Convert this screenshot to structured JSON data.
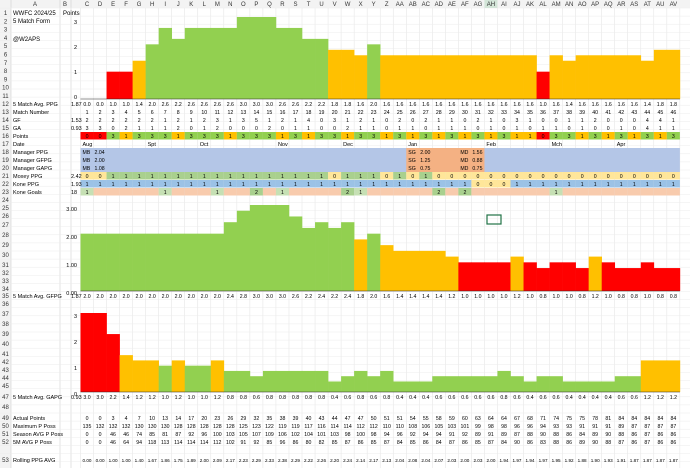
{
  "sheet": {
    "columns": [
      "A",
      "B",
      "C",
      "D",
      "E",
      "F",
      "G",
      "H",
      "I",
      "J",
      "K",
      "L",
      "M",
      "N",
      "O",
      "P",
      "Q",
      "R",
      "S",
      "T",
      "U",
      "V",
      "W",
      "X",
      "Y",
      "Z",
      "AA",
      "AB",
      "AC",
      "AD",
      "AE",
      "AF",
      "AG",
      "AH",
      "AI",
      "AJ",
      "AK",
      "AL",
      "AM",
      "AN",
      "AO",
      "AP",
      "AQ",
      "AR",
      "AS",
      "AT",
      "AU",
      "AV"
    ],
    "selected_column": "AH",
    "rows_top": [
      1,
      2,
      3,
      4,
      5,
      6,
      7,
      8,
      9,
      10,
      11
    ]
  },
  "labels": {
    "title": "WWFC 2024/25",
    "points_header": "Points",
    "form_label": "5 Match Form",
    "handle": "@W2APS",
    "row12": "5 Match Avg. PPG",
    "row12_val": "1.87",
    "row13": "Match Number",
    "row14": "GF",
    "row14_val": "1.53",
    "row15": "GA",
    "row15_val": "0.93",
    "row16": "Points",
    "row17": "Date",
    "row18": "Manager PPG",
    "row19": "Manager GFPG",
    "row20": "Manager GAPG",
    "row21": "Moxey PPG",
    "row21_val": "2.42",
    "row22": "Kone PPG",
    "row22_val": "1.93",
    "row23": "Kone Goals",
    "row23_val": "18",
    "row35": "5 Match Avg. GFPG",
    "row35_val": "1.87",
    "row47": "5 Match Avg. GAPG",
    "row47_val": "0.93",
    "row49": "Actual Points",
    "row50": "Maximum P Poss",
    "row51": "Season AVG P Poss",
    "row52": "5M AVG P Poss",
    "row53": "Rolling PPG AVG"
  },
  "axis_top": [
    "3",
    "2",
    "1",
    "0"
  ],
  "axis_mid": [
    "3.00",
    "2.00",
    "1.00",
    "0.00"
  ],
  "axis_bot": [
    "3",
    "2",
    "1",
    "0"
  ],
  "chart_data": [
    {
      "type": "bar",
      "title": "5 Match Form",
      "categories": [
        "1",
        "2",
        "3",
        "4",
        "5",
        "6",
        "7",
        "8",
        "9",
        "10",
        "11",
        "12",
        "13",
        "14",
        "15",
        "16",
        "17",
        "18",
        "19",
        "20",
        "21",
        "22",
        "23",
        "24",
        "25",
        "26",
        "27",
        "28",
        "29",
        "30",
        "31",
        "32",
        "33",
        "34",
        "35",
        "36",
        "37",
        "38",
        "39",
        "40",
        "41",
        "42",
        "43",
        "44",
        "45",
        "46"
      ],
      "values": [
        0,
        0,
        1,
        1,
        1.4,
        2,
        2.6,
        2.2,
        2.6,
        2.6,
        2.6,
        2.6,
        3,
        3,
        3,
        2.6,
        2.6,
        2.2,
        2.2,
        1.8,
        1.8,
        1.6,
        2,
        1.6,
        1.6,
        1.6,
        1.6,
        1.6,
        1.6,
        1.6,
        1.6,
        1.6,
        1.6,
        1.6,
        1.6,
        1,
        1.6,
        1.4,
        1.6,
        1.6,
        1.6,
        1.6,
        1.6,
        1.4,
        1.8,
        1.8
      ],
      "ylim": [
        0,
        3
      ],
      "colors": {
        "high": "#92d050",
        "mid": "#ffc000",
        "low": "#ff0000"
      }
    },
    {
      "type": "bar",
      "title": "5 Match Avg. GFPG",
      "values": [
        2,
        2,
        2,
        2,
        2,
        2,
        2,
        2,
        2,
        2,
        2,
        2.4,
        2.8,
        3,
        3,
        3,
        2.6,
        2.2,
        2.4,
        2.2,
        2.4,
        1.8,
        2,
        1.6,
        1.4,
        1.4,
        1.4,
        1.4,
        1.2,
        1,
        1,
        1,
        1,
        1.2,
        1,
        0.8,
        1,
        1,
        0.8,
        1.2,
        1,
        0.8,
        0.8,
        1,
        0.8,
        0.8
      ],
      "ylim": [
        0,
        3
      ]
    },
    {
      "type": "bar",
      "title": "5 Match Avg. GAPG",
      "values": [
        3,
        3,
        2.2,
        1.4,
        1.2,
        1.2,
        1,
        1.2,
        1,
        1,
        1.2,
        0.8,
        0.8,
        0.6,
        0.8,
        0.8,
        0.8,
        0.8,
        0.8,
        0.4,
        0.6,
        0.8,
        0.6,
        0.8,
        0.4,
        0.4,
        0.4,
        0.6,
        0.6,
        0.6,
        0.6,
        0.6,
        0.8,
        0.6,
        0.4,
        0.6,
        0.6,
        0.4,
        0.4,
        0.4,
        0.4,
        0.6,
        0.6,
        1.2,
        1.2,
        1.2
      ],
      "ylim": [
        0,
        3
      ]
    }
  ],
  "rows": {
    "ppg": [
      "0.0",
      "0.0",
      "1.0",
      "1.0",
      "1.4",
      "2.0",
      "2.6",
      "2.2",
      "2.6",
      "2.6",
      "2.6",
      "2.6",
      "3.0",
      "3.0",
      "3.0",
      "2.6",
      "2.6",
      "2.2",
      "2.2",
      "1.8",
      "1.8",
      "1.6",
      "2.0",
      "1.6",
      "1.6",
      "1.6",
      "1.6",
      "1.6",
      "1.6",
      "1.6",
      "1.6",
      "1.6",
      "1.6",
      "1.6",
      "1.6",
      "1.0",
      "1.6",
      "1.4",
      "1.6",
      "1.6",
      "1.6",
      "1.6",
      "1.6",
      "1.4",
      "1.8",
      "1.8"
    ],
    "gf": [
      "2",
      "2",
      "2",
      "2",
      "2",
      "2",
      "1",
      "2",
      "1",
      "2",
      "3",
      "1",
      "3",
      "5",
      "1",
      "2",
      "1",
      "4",
      "0",
      "3",
      "1",
      "2",
      "1",
      "0",
      "2",
      "0",
      "2",
      "1",
      "1",
      "0",
      "2",
      "1",
      "0",
      "3",
      "1",
      "0",
      "0",
      "1",
      "1",
      "2",
      "0",
      "0",
      "0",
      "4",
      "4",
      "1"
    ],
    "ga": [
      "3",
      "3",
      "0",
      "2",
      "1",
      "1",
      "1",
      "2",
      "0",
      "1",
      "2",
      "0",
      "0",
      "0",
      "2",
      "0",
      "1",
      "1",
      "0",
      "0",
      "2",
      "1",
      "1",
      "0",
      "1",
      "1",
      "0",
      "1",
      "1",
      "1",
      "0",
      "1",
      "0",
      "1",
      "0",
      "1",
      "1",
      "0",
      "1",
      "0",
      "0",
      "1",
      "0",
      "4",
      "1",
      "1"
    ],
    "points": [
      "0",
      "0",
      "3",
      "1",
      "3",
      "3",
      "3",
      "1",
      "3",
      "3",
      "3",
      "1",
      "3",
      "3",
      "3",
      "1",
      "3",
      "1",
      "3",
      "3",
      "1",
      "3",
      "3",
      "1",
      "3",
      "1",
      "3",
      "1",
      "3",
      "1",
      "3",
      "1",
      "3",
      "1",
      "1",
      "0",
      "3",
      "3",
      "1",
      "3",
      "1",
      "3",
      "1",
      "3",
      "1",
      "3"
    ],
    "months": [
      {
        "text": "Aug",
        "col": 0
      },
      {
        "text": "Spt",
        "col": 5
      },
      {
        "text": "Oct",
        "col": 9
      },
      {
        "text": "Nov",
        "col": 15
      },
      {
        "text": "Dec",
        "col": 20
      },
      {
        "text": "Jan",
        "col": 25
      },
      {
        "text": "Feb",
        "col": 31
      },
      {
        "text": "Mch",
        "col": 36
      },
      {
        "text": "Apr",
        "col": 41
      }
    ],
    "managers": [
      {
        "name": "MB",
        "ppg": "2.04",
        "gf": "2.00",
        "ga": "1.08"
      },
      {
        "name": "SG",
        "ppg": "2.00",
        "gf": "1.25",
        "ga": "0.75"
      },
      {
        "name": "MD",
        "ppg": "1.56",
        "gf": "0.88",
        "ga": "0.75"
      }
    ],
    "moxey": [
      "0",
      "0",
      "1",
      "1",
      "1",
      "1",
      "1",
      "1",
      "1",
      "1",
      "1",
      "1",
      "1",
      "1",
      "1",
      "1",
      "1",
      "1",
      "1",
      "0",
      "1",
      "1",
      "1",
      "0",
      "1",
      "0",
      "1",
      "0",
      "0",
      "0",
      "0",
      "0",
      "0",
      "0",
      "0",
      "0",
      "0",
      "0",
      "0",
      "0",
      "0",
      "0",
      "0",
      "0",
      "0",
      "0"
    ],
    "kone_ppg": [
      "1",
      "1",
      "1",
      "1",
      "1",
      "1",
      "1",
      "1",
      "1",
      "1",
      "1",
      "1",
      "1",
      "1",
      "1",
      "1",
      "1",
      "1",
      "1",
      "1",
      "1",
      "1",
      "1",
      "1",
      "1",
      "1",
      "1",
      "1",
      "1",
      "1",
      "0",
      "0",
      "0",
      "1",
      "1",
      "1",
      "1",
      "1",
      "1",
      "1",
      "1",
      "1",
      "1",
      "1",
      "1",
      "1"
    ],
    "kone_goals": [
      "1",
      "",
      "",
      "",
      "",
      "",
      "1",
      "",
      "",
      "",
      "1",
      "",
      "",
      "2",
      "",
      "1",
      "",
      "",
      "",
      "",
      "2",
      "1",
      "",
      "",
      "",
      "",
      "",
      "2",
      "",
      "2",
      "",
      "",
      "",
      "",
      "",
      "",
      "1",
      "",
      "",
      "",
      "",
      "",
      "",
      "",
      "",
      ""
    ],
    "actual": [
      "0",
      "0",
      "3",
      "4",
      "7",
      "10",
      "13",
      "14",
      "17",
      "20",
      "23",
      "26",
      "29",
      "32",
      "35",
      "38",
      "39",
      "40",
      "43",
      "44",
      "47",
      "47",
      "50",
      "51",
      "51",
      "54",
      "55",
      "58",
      "59",
      "60",
      "63",
      "64",
      "64",
      "67",
      "68",
      "71",
      "74",
      "75",
      "75",
      "78",
      "81",
      "84",
      "84",
      "84",
      "84",
      "84"
    ],
    "max": [
      "135",
      "132",
      "132",
      "132",
      "130",
      "130",
      "130",
      "128",
      "128",
      "128",
      "128",
      "128",
      "125",
      "123",
      "122",
      "119",
      "119",
      "117",
      "116",
      "114",
      "114",
      "112",
      "112",
      "110",
      "110",
      "108",
      "106",
      "105",
      "103",
      "101",
      "99",
      "98",
      "98",
      "96",
      "96",
      "94",
      "93",
      "93",
      "91",
      "91",
      "91",
      "89",
      "87",
      "87",
      "87",
      "87"
    ],
    "season": [
      "0",
      "0",
      "46",
      "46",
      "74",
      "85",
      "81",
      "87",
      "92",
      "96",
      "100",
      "103",
      "105",
      "107",
      "109",
      "106",
      "102",
      "104",
      "101",
      "103",
      "98",
      "100",
      "98",
      "94",
      "96",
      "92",
      "94",
      "94",
      "91",
      "92",
      "89",
      "91",
      "89",
      "87",
      "88",
      "90",
      "88",
      "86",
      "84",
      "89",
      "90",
      "88",
      "86",
      "87",
      "86",
      "86"
    ],
    "fivem": [
      "0",
      "0",
      "46",
      "64",
      "94",
      "118",
      "113",
      "114",
      "114",
      "114",
      "112",
      "102",
      "91",
      "92",
      "85",
      "96",
      "86",
      "80",
      "82",
      "85",
      "87",
      "86",
      "85",
      "87",
      "84",
      "85",
      "86",
      "84",
      "87",
      "86",
      "85",
      "87",
      "84",
      "90",
      "86",
      "83",
      "88",
      "86",
      "89",
      "90",
      "88",
      "87",
      "86",
      "87",
      "86",
      "86"
    ],
    "rolling": [
      "0.00",
      "0.00",
      "1.00",
      "1.00",
      "1.40",
      "1.67",
      "1.86",
      "1.75",
      "1.89",
      "2.00",
      "2.09",
      "2.17",
      "2.23",
      "2.29",
      "2.33",
      "2.38",
      "2.29",
      "2.22",
      "2.26",
      "2.20",
      "2.24",
      "2.14",
      "2.17",
      "2.13",
      "2.04",
      "2.08",
      "2.04",
      "2.07",
      "2.03",
      "2.00",
      "2.03",
      "2.00",
      "1.94",
      "1.97",
      "1.94",
      "1.97",
      "1.95",
      "1.92",
      "1.88",
      "1.90",
      "1.93",
      "1.91",
      "1.87",
      "1.87",
      "1.87",
      "1.87"
    ]
  }
}
